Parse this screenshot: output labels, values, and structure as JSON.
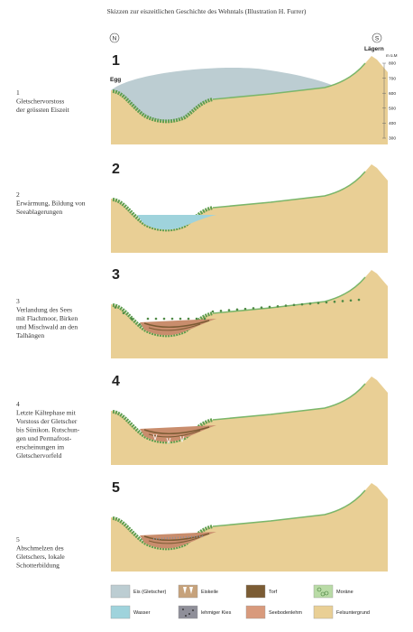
{
  "title": "Skizzen zur eiszeitlichen Geschichte des Wehntals (Illustration H. Furrer)",
  "compass": {
    "north": "N",
    "south": "S"
  },
  "places": {
    "left": "Egg",
    "right": "Lägern"
  },
  "altitude_scale": {
    "unit": "m ü.M",
    "ticks": [
      800,
      700,
      600,
      500,
      400,
      300
    ]
  },
  "panels": [
    {
      "number": "1",
      "caption": [
        "1",
        "Gletschervorstoss",
        "der grössten Eiszeit"
      ]
    },
    {
      "number": "2",
      "caption": [
        "2",
        "Erwärmung, Bildung von",
        "Seeablagerungen"
      ]
    },
    {
      "number": "3",
      "caption": [
        "3",
        "Verlandung des Sees",
        "mit Flachmoor, Birken",
        "und Mischwald an den",
        "Talhängen"
      ]
    },
    {
      "number": "4",
      "caption": [
        "4",
        "Letzte Kältephase mit",
        "Vorstoss der Gletscher",
        "bis Sünikon. Rutschun-",
        "gen und Permafrost-",
        "erscheinungen im",
        "Gletschervorfeld"
      ]
    },
    {
      "number": "5",
      "caption": [
        "5",
        "Abschmelzen des",
        "Gletschers, lokale",
        "Schotterbildung"
      ]
    }
  ],
  "legend": [
    {
      "label": "Eis (Gletscher)"
    },
    {
      "label": "Eiskeile"
    },
    {
      "label": "Torf"
    },
    {
      "label": "Moräne"
    },
    {
      "label": "Wasser"
    },
    {
      "label": "lehmiger Kies"
    },
    {
      "label": "Seebodenlehm"
    },
    {
      "label": "Felsuntergrund"
    }
  ]
}
